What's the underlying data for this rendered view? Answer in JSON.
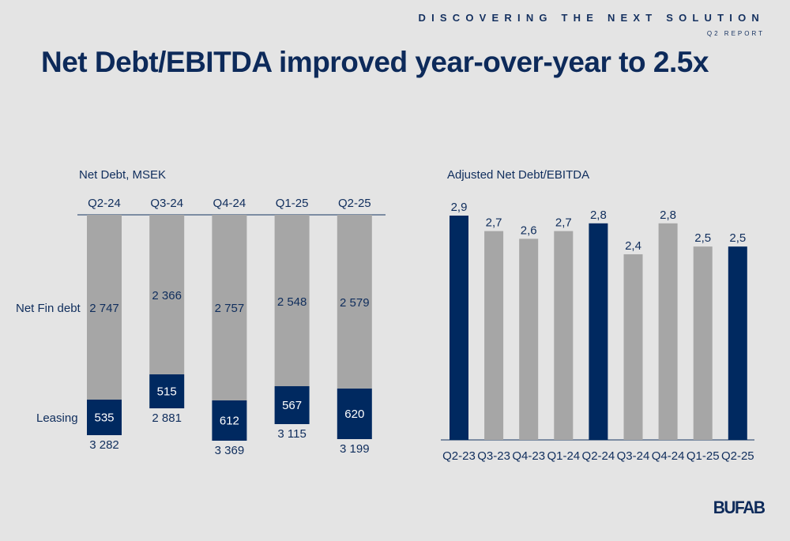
{
  "header": {
    "tagline": "DISCOVERING THE NEXT SOLUTION",
    "report": "Q2 REPORT"
  },
  "title": "Net Debt/EBITDA improved year-over-year to 2.5x",
  "logo": "BUFAB",
  "colors": {
    "navy": "#002960",
    "gray": "#a6a6a6",
    "background": "#e4e4e4",
    "text": "#0f2d5c"
  },
  "chart_data": [
    {
      "type": "bar",
      "stacked": true,
      "title": "Net Debt, MSEK",
      "categories": [
        "Q2-24",
        "Q3-24",
        "Q4-24",
        "Q1-25",
        "Q2-25"
      ],
      "category_position": "top",
      "row_labels": {
        "net_fin_debt": "Net Fin debt",
        "leasing": "Leasing"
      },
      "series": [
        {
          "name": "Net Fin debt",
          "values": [
            2747,
            2366,
            2757,
            2548,
            2579
          ],
          "labels": [
            "2 747",
            "2 366",
            "2 757",
            "2 548",
            "2 579"
          ],
          "color": "#a6a6a6"
        },
        {
          "name": "Leasing",
          "values": [
            535,
            515,
            612,
            567,
            620
          ],
          "labels": [
            "535",
            "515",
            "612",
            "567",
            "620"
          ],
          "color": "#002960"
        }
      ],
      "totals": [
        3282,
        2881,
        3369,
        3115,
        3199
      ],
      "total_labels": [
        "3 282",
        "2 881",
        "3 369",
        "3 115",
        "3 199"
      ],
      "xlabel": "",
      "ylabel": "",
      "grid": false,
      "legend": "none"
    },
    {
      "type": "bar",
      "title": "Adjusted Net Debt/EBITDA",
      "categories": [
        "Q2-23",
        "Q3-23",
        "Q4-23",
        "Q1-24",
        "Q2-24",
        "Q3-24",
        "Q4-24",
        "Q1-25",
        "Q2-25"
      ],
      "values": [
        2.9,
        2.7,
        2.6,
        2.7,
        2.8,
        2.4,
        2.8,
        2.5,
        2.5
      ],
      "value_labels": [
        "2,9",
        "2,7",
        "2,6",
        "2,7",
        "2,8",
        "2,4",
        "2,8",
        "2,5",
        "2,5"
      ],
      "highlight": [
        true,
        false,
        false,
        false,
        true,
        false,
        false,
        false,
        true
      ],
      "ylim": [
        0,
        2.9
      ],
      "xlabel": "",
      "ylabel": "",
      "grid": false,
      "legend": "none"
    }
  ]
}
